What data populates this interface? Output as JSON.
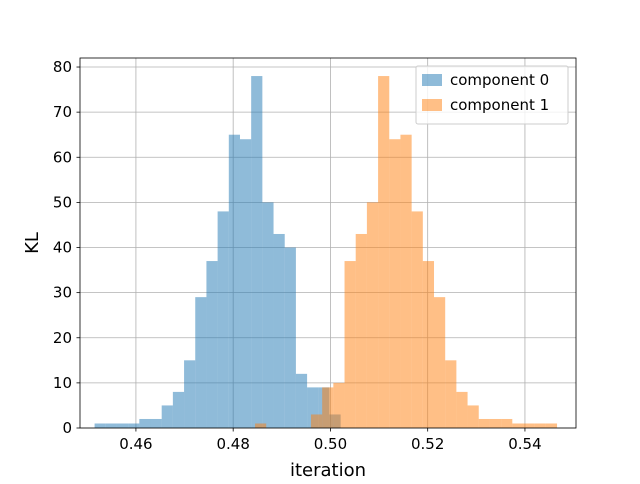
{
  "chart_data": {
    "type": "bar",
    "title": "",
    "xlabel": "iteration",
    "ylabel": "KL",
    "xlim": [
      0.4485,
      0.5505
    ],
    "ylim": [
      0,
      82
    ],
    "xticks": [
      0.46,
      0.48,
      0.5,
      0.52,
      0.54
    ],
    "xtick_labels": [
      "0.46",
      "0.48",
      "0.50",
      "0.52",
      "0.54"
    ],
    "yticks": [
      0,
      10,
      20,
      30,
      40,
      50,
      60,
      70,
      80
    ],
    "ytick_labels": [
      "0",
      "10",
      "20",
      "30",
      "40",
      "50",
      "60",
      "70",
      "80"
    ],
    "grid": true,
    "legend_position": "upper-right",
    "series": [
      {
        "name": "component 0",
        "color": "#1f77b4",
        "alpha": 0.5,
        "bin_edges": [
          0.4515,
          0.4538,
          0.4561,
          0.4584,
          0.4607,
          0.463,
          0.4653,
          0.4676,
          0.4699,
          0.4722,
          0.4745,
          0.4768,
          0.4791,
          0.4814,
          0.4837,
          0.486,
          0.4883,
          0.4906,
          0.4929,
          0.4952,
          0.4975,
          0.4998,
          0.5021,
          0.5044
        ],
        "counts": [
          1,
          1,
          1,
          1,
          2,
          2,
          5,
          8,
          15,
          29,
          37,
          48,
          65,
          64,
          78,
          50,
          43,
          40,
          12,
          9,
          9,
          3,
          0
        ]
      },
      {
        "name": "component 1",
        "color": "#ff7f0e",
        "alpha": 0.5,
        "bin_edges": [
          0.4845,
          0.4868,
          0.4891,
          0.4914,
          0.4937,
          0.496,
          0.4983,
          0.5006,
          0.5029,
          0.5052,
          0.5075,
          0.5098,
          0.5121,
          0.5144,
          0.5167,
          0.519,
          0.5213,
          0.5236,
          0.5259,
          0.5282,
          0.5305,
          0.5328,
          0.5351,
          0.5374,
          0.5397,
          0.542,
          0.5443,
          0.5466
        ],
        "counts": [
          1,
          0,
          0,
          0,
          0,
          3,
          9,
          10,
          37,
          43,
          50,
          78,
          64,
          65,
          48,
          37,
          29,
          15,
          8,
          5,
          2,
          2,
          2,
          1,
          1,
          1,
          1
        ]
      }
    ]
  }
}
